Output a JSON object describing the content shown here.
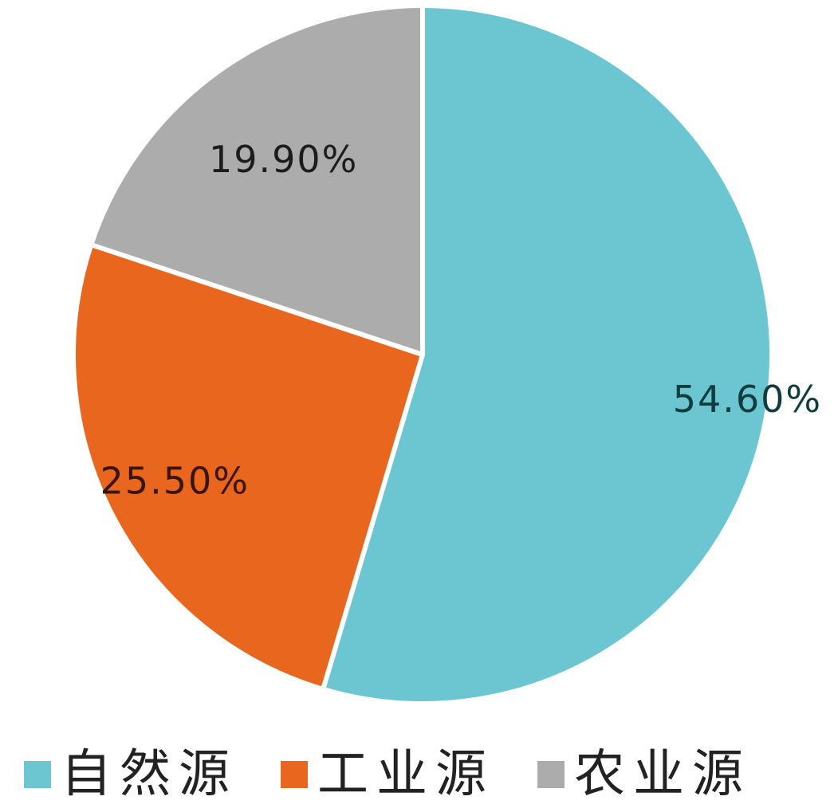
{
  "chart_data": {
    "type": "pie",
    "series": [
      {
        "name": "自然源",
        "value": 54.6,
        "label": "54.60%",
        "color": "#6bc6d2",
        "label_color": "#0f3d3f"
      },
      {
        "name": "工业源",
        "value": 25.5,
        "label": "25.50%",
        "color": "#e8661d",
        "label_color": "#3a1505"
      },
      {
        "name": "农业源",
        "value": 19.9,
        "label": "19.90%",
        "color": "#acacac",
        "label_color": "#1c1c1c"
      }
    ],
    "start_angle": "12 o'clock",
    "direction": "clockwise",
    "legend_position": "bottom"
  }
}
